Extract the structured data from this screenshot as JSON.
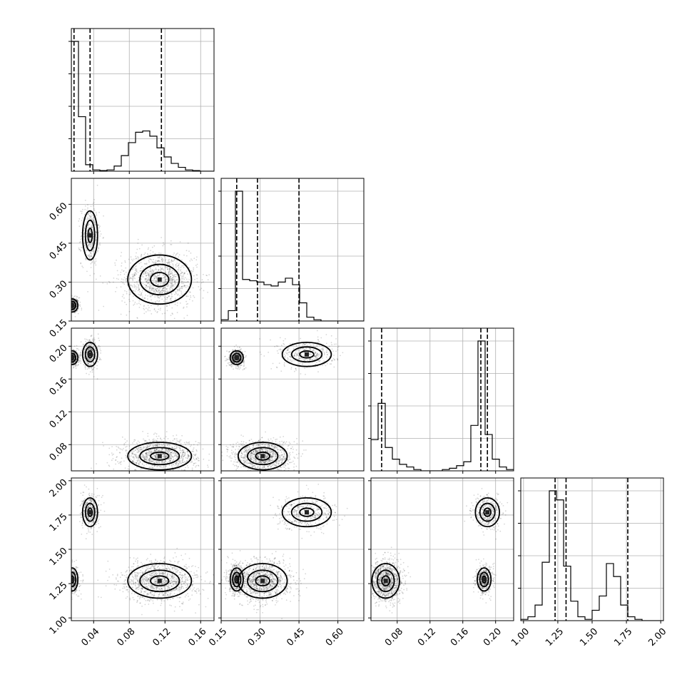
{
  "chart_data": {
    "type": "corner",
    "parameters": [
      {
        "range": [
          0.015,
          0.175
        ],
        "ticks": [
          0.04,
          0.08,
          0.12,
          0.16
        ],
        "tick_labels": [
          "0.04",
          "0.08",
          "0.12",
          "0.16"
        ],
        "quantiles": [
          0.018,
          0.036,
          0.116
        ],
        "hist": {
          "edges_start": 0.015,
          "bin_width": 0.008,
          "counts": [
            1.0,
            0.42,
            0.05,
            0.01,
            0.005,
            0.01,
            0.04,
            0.12,
            0.22,
            0.3,
            0.31,
            0.27,
            0.18,
            0.11,
            0.06,
            0.03,
            0.01,
            0.005,
            0.0,
            0.0
          ]
        }
      },
      {
        "range": [
          0.15,
          0.7
        ],
        "ticks": [
          0.15,
          0.3,
          0.45,
          0.6
        ],
        "tick_labels": [
          "0.15",
          "0.30",
          "0.45",
          "0.60"
        ],
        "quantiles": [
          0.21,
          0.29,
          0.45
        ],
        "hist": {
          "edges_start": 0.15,
          "bin_width": 0.0275,
          "counts": [
            0.01,
            0.08,
            1.0,
            0.32,
            0.31,
            0.3,
            0.28,
            0.27,
            0.3,
            0.33,
            0.28,
            0.14,
            0.03,
            0.01,
            0.0,
            0.0,
            0.0,
            0.0,
            0.0,
            0.0
          ]
        }
      },
      {
        "range": [
          0.048,
          0.222
        ],
        "ticks": [
          0.08,
          0.12,
          0.16,
          0.2
        ],
        "tick_labels": [
          "0.08",
          "0.12",
          "0.16",
          "0.20"
        ],
        "quantiles": [
          0.061,
          0.182,
          0.19
        ],
        "hist": {
          "edges_start": 0.048,
          "bin_width": 0.0087,
          "counts": [
            0.24,
            0.52,
            0.18,
            0.09,
            0.05,
            0.03,
            0.01,
            0.0,
            0.0,
            0.0,
            0.01,
            0.02,
            0.04,
            0.07,
            0.35,
            1.0,
            0.28,
            0.09,
            0.03,
            0.01
          ]
        }
      },
      {
        "range": [
          0.98,
          2.02
        ],
        "ticks": [
          1.0,
          1.25,
          1.5,
          1.75,
          2.0
        ],
        "tick_labels": [
          "1.00",
          "1.25",
          "1.50",
          "1.75",
          "2.00"
        ],
        "quantiles": [
          1.23,
          1.31,
          1.76
        ],
        "hist": {
          "edges_start": 0.98,
          "bin_width": 0.052,
          "counts": [
            0.01,
            0.03,
            0.12,
            0.45,
            1.0,
            0.93,
            0.42,
            0.15,
            0.03,
            0.01,
            0.08,
            0.19,
            0.44,
            0.34,
            0.12,
            0.03,
            0.01,
            0.0,
            0.0,
            0.0
          ]
        }
      }
    ],
    "modes": [
      {
        "center": [
          0.016,
          0.21,
          0.186,
          1.28
        ],
        "sd": [
          0.003,
          0.012,
          0.004,
          0.04
        ]
      },
      {
        "center": [
          0.036,
          0.48,
          0.19,
          1.77
        ],
        "sd": [
          0.004,
          0.045,
          0.007,
          0.05
        ]
      },
      {
        "center": [
          0.114,
          0.31,
          0.066,
          1.27
        ],
        "sd": [
          0.017,
          0.045,
          0.008,
          0.06
        ]
      }
    ]
  }
}
